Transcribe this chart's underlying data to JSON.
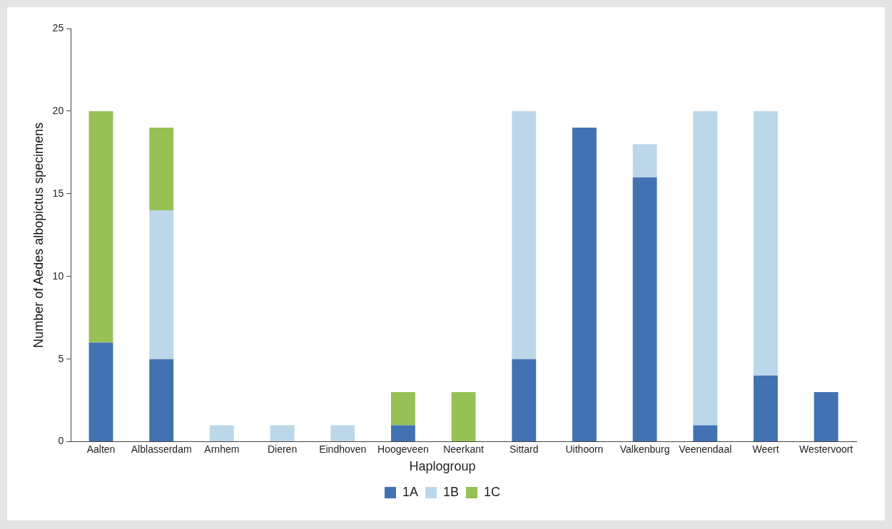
{
  "chart_data": {
    "type": "bar",
    "stacked": true,
    "ylabel": "Number of Aedes albopictus specimens",
    "legend_title": "Haplogroup",
    "legend": "bottom",
    "grid": false,
    "categories": [
      "Aalten",
      "Alblasserdam",
      "Arnhem",
      "Dieren",
      "Eindhoven",
      "Hoogeveen",
      "Neerkant",
      "Sittard",
      "Uithoorn",
      "Valkenburg",
      "Veenendaal",
      "Weert",
      "Westervoort"
    ],
    "series": [
      {
        "name": "1A",
        "color": "#4372b4",
        "values": [
          6,
          5,
          0,
          0,
          0,
          1,
          0,
          5,
          19,
          16,
          1,
          4,
          3
        ]
      },
      {
        "name": "1B",
        "color": "#bdd7ea",
        "values": [
          0,
          9,
          1,
          1,
          1,
          0,
          0,
          15,
          0,
          2,
          19,
          16,
          0
        ]
      },
      {
        "name": "1C",
        "color": "#97c155",
        "values": [
          14,
          5,
          0,
          0,
          0,
          2,
          3,
          0,
          0,
          0,
          0,
          0,
          0
        ]
      }
    ],
    "ylim": [
      0,
      25
    ],
    "yticks": [
      0,
      5,
      10,
      15,
      20,
      25
    ]
  }
}
